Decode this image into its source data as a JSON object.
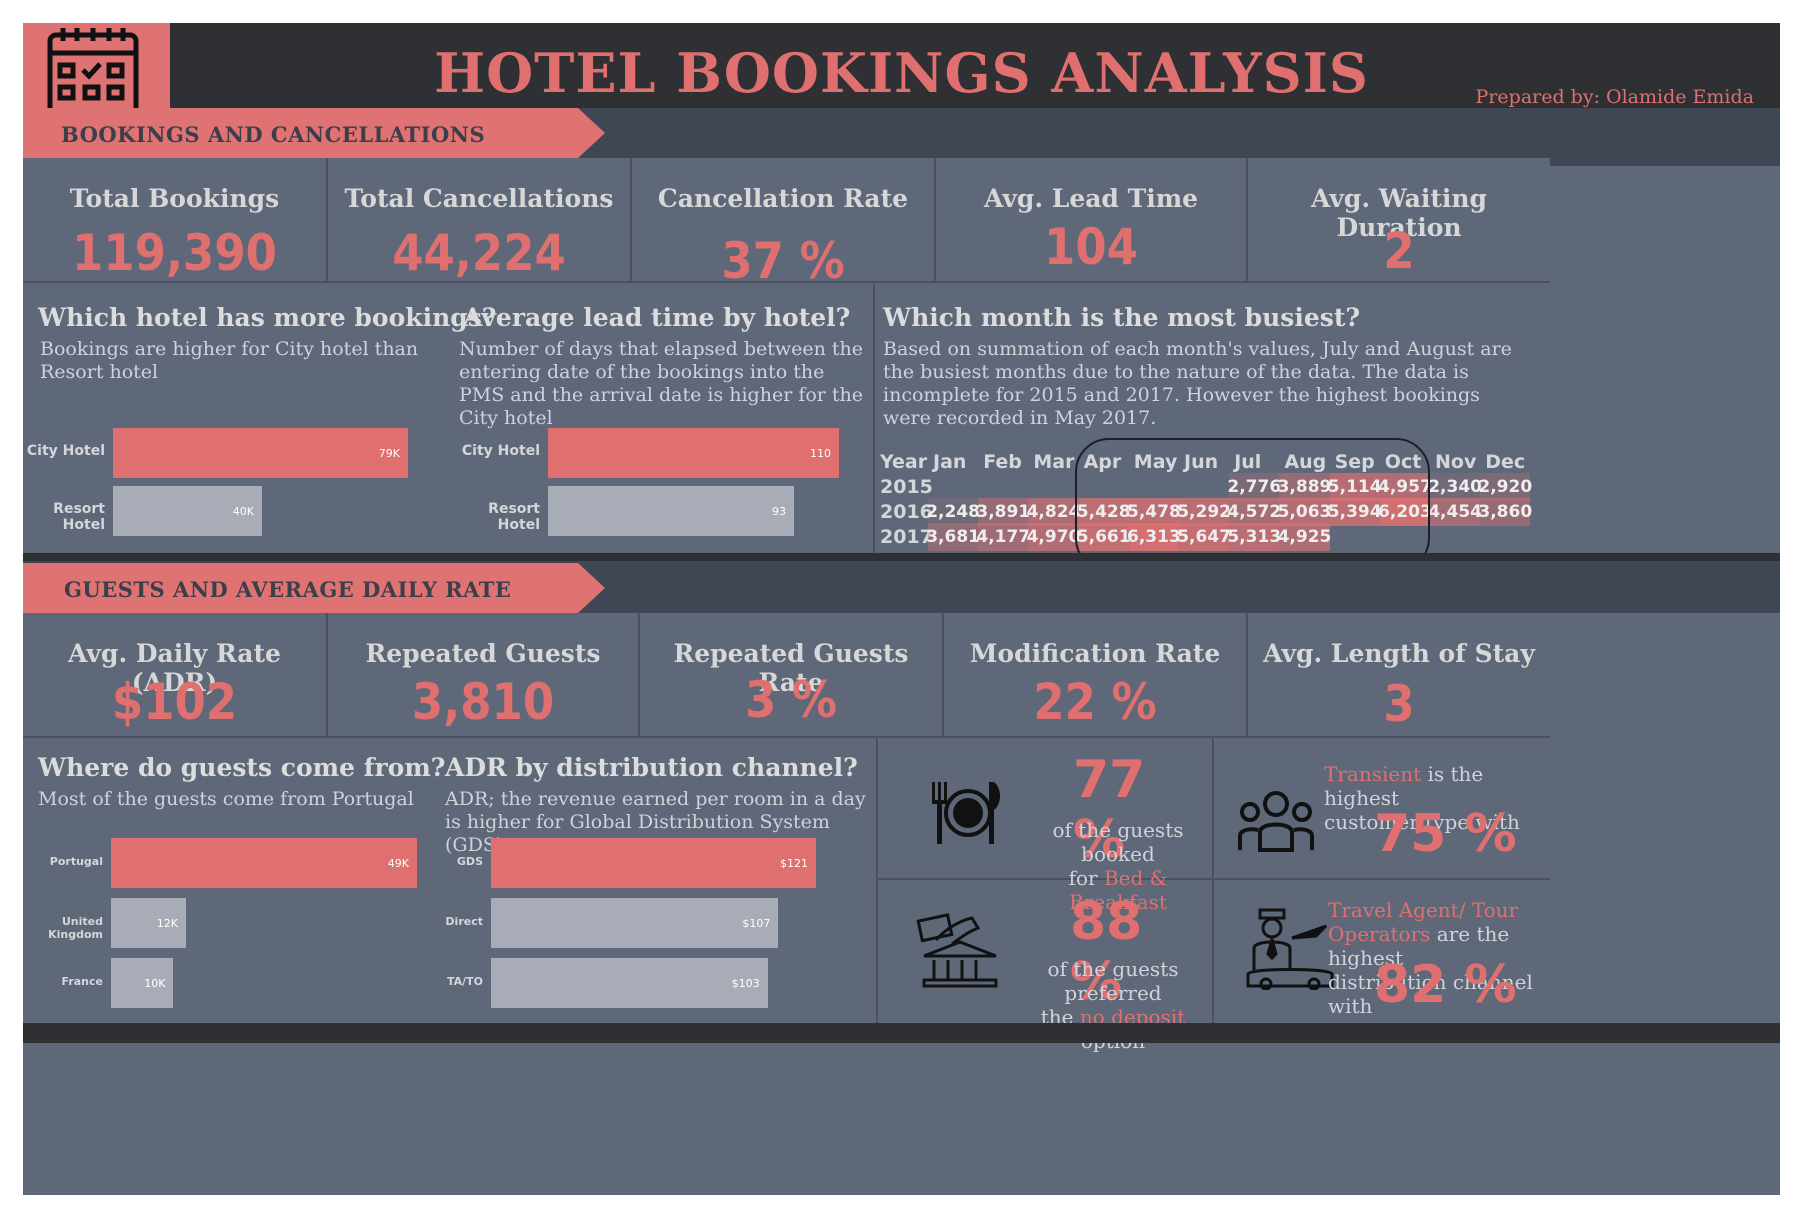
{
  "header": {
    "title": "HOTEL BOOKINGS ANALYSIS",
    "prepared_by": "Prepared by: Olamide Emida"
  },
  "colors": {
    "accent": "#e07070",
    "panel": "#5e6879",
    "dark": "#2f3033",
    "bar_secondary": "#a7acb6"
  },
  "section1": {
    "ribbon": "BOOKINGS AND CANCELLATIONS",
    "kpis": [
      {
        "label": "Total Bookings",
        "value": "119,390"
      },
      {
        "label": "Total Cancellations",
        "value": "44,224"
      },
      {
        "label": "Cancellation Rate",
        "value": "37 %"
      },
      {
        "label": "Avg. Lead Time",
        "value": "104"
      },
      {
        "label": "Avg. Waiting Duration",
        "value": "2"
      }
    ],
    "hotel_q": "Which hotel has more bookings?",
    "hotel_desc": "Bookings are higher for City hotel than Resort hotel",
    "lead_q": "Average lead time by hotel?",
    "lead_desc": "Number of days that elapsed between the entering date of the bookings into the PMS and the arrival date is higher for the City hotel",
    "month_q": "Which month is the most busiest?",
    "month_desc": "Based on summation of each month's values, July and August are the busiest months due to the nature of the data. The data is incomplete for 2015 and 2017. However the highest bookings were recorded in May 2017."
  },
  "section2": {
    "ribbon": "GUESTS AND AVERAGE DAILY RATE",
    "kpis": [
      {
        "label": "Avg. Daily Rate (ADR)",
        "value": "$102"
      },
      {
        "label": "Repeated Guests",
        "value": "3,810"
      },
      {
        "label": "Repeated Guests Rate",
        "value": "3 %"
      },
      {
        "label": "Modification Rate",
        "value": "22 %"
      },
      {
        "label": "Avg. Length of Stay",
        "value": "3"
      }
    ],
    "country_q": "Where do guests come from?",
    "country_desc": "Most of the guests come from Portugal",
    "adr_q": "ADR by distribution channel?",
    "adr_desc": "ADR; the revenue earned per room in a day is higher for Global Distribution System (GDS)",
    "cards": {
      "bb": {
        "pct": "77 %",
        "line1": "of the guests booked",
        "line2_pre": "for ",
        "line2_hl": "Bed & Breakfast"
      },
      "transient": {
        "hl": "Transient",
        "rest1": " is the highest",
        "line2": "customer type with",
        "pct": "75 %"
      },
      "deposit": {
        "pct": "88 %",
        "line1": "of the guests preferred",
        "pre": "the ",
        "hl": "no deposit",
        "post": " option"
      },
      "agent": {
        "hl1": "Travel Agent/ Tour",
        "hl2": "Operators",
        "rest2": " are the highest",
        "line3": "distribution channel with",
        "pct": "82 %"
      }
    }
  },
  "chart_data": [
    {
      "type": "bar",
      "orientation": "horizontal",
      "categories": [
        "City Hotel",
        "Resort Hotel"
      ],
      "values": [
        79330,
        40060
      ],
      "data_labels": [
        "79K",
        "40K"
      ]
    },
    {
      "type": "bar",
      "orientation": "horizontal",
      "categories": [
        "City Hotel",
        "Resort Hotel"
      ],
      "values": [
        110,
        93
      ],
      "data_labels": [
        "110",
        "93"
      ]
    },
    {
      "type": "heatmap",
      "columns": [
        "Year",
        "Jan",
        "Feb",
        "Mar",
        "Apr",
        "May",
        "Jun",
        "Jul",
        "Aug",
        "Sep",
        "Oct",
        "Nov",
        "Dec"
      ],
      "rows": [
        {
          "year": "2015",
          "values": [
            null,
            null,
            null,
            null,
            null,
            null,
            2776,
            3889,
            5114,
            4957,
            2340,
            2920
          ]
        },
        {
          "year": "2016",
          "values": [
            2248,
            3891,
            4824,
            5428,
            5478,
            5292,
            4572,
            5063,
            5394,
            6203,
            4454,
            3860
          ]
        },
        {
          "year": "2017",
          "values": [
            3681,
            4177,
            4970,
            5661,
            6313,
            5647,
            5313,
            4925,
            null,
            null,
            null,
            null
          ]
        }
      ],
      "labels": [
        [
          null,
          null,
          null,
          null,
          null,
          null,
          "2,776",
          "3,889",
          "5,114",
          "4,957",
          "2,340",
          "2,920"
        ],
        [
          "2,248",
          "3,891",
          "4,824",
          "5,428",
          "5,478",
          "5,292",
          "4,572",
          "5,063",
          "5,394",
          "6,203",
          "4,454",
          "3,860"
        ],
        [
          "3,681",
          "4,177",
          "4,970",
          "5,661",
          "6,313",
          "5,647",
          "5,313",
          "4,925",
          null,
          null,
          null,
          null
        ]
      ]
    },
    {
      "type": "bar",
      "orientation": "horizontal",
      "categories": [
        "Portugal",
        "United Kingdom",
        "France"
      ],
      "values": [
        49000,
        12000,
        10000
      ],
      "data_labels": [
        "49K",
        "12K",
        "10K"
      ]
    },
    {
      "type": "bar",
      "orientation": "horizontal",
      "categories": [
        "GDS",
        "Direct",
        "TA/TO"
      ],
      "values": [
        121,
        107,
        103
      ],
      "data_labels": [
        "$121",
        "$107",
        "$103"
      ]
    }
  ]
}
